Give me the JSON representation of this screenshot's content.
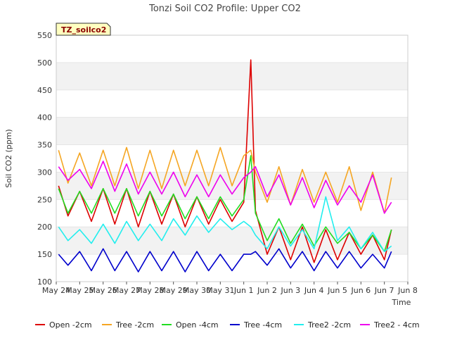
{
  "chart_data": {
    "type": "line",
    "title": "Tonzi Soil CO2 Profile: Upper CO2",
    "xlabel": "Time",
    "ylabel": "Soil CO2 (ppm)",
    "badge": "TZ_soilco2",
    "ylim": [
      100,
      550
    ],
    "yticks": [
      100,
      150,
      200,
      250,
      300,
      350,
      400,
      450,
      500,
      550
    ],
    "xlim": [
      0,
      15
    ],
    "xtick_labels": [
      "May 24",
      "May 25",
      "May 26",
      "May 27",
      "May 28",
      "May 29",
      "May 30",
      "May 31",
      "Jun 1",
      "Jun 2",
      "Jun 3",
      "Jun 4",
      "Jun 5",
      "Jun 6",
      "Jun 7",
      "Jun 8"
    ],
    "grid": "horizontal bands",
    "legend_position": "bottom",
    "x_days": [
      0.1,
      0.5,
      1.0,
      1.5,
      2.0,
      2.5,
      3.0,
      3.5,
      4.0,
      4.5,
      5.0,
      5.5,
      6.0,
      6.5,
      7.0,
      7.5,
      8.0,
      8.3,
      8.5,
      9.0,
      9.5,
      10.0,
      10.5,
      11.0,
      11.5,
      12.0,
      12.5,
      13.0,
      13.5,
      14.0,
      14.3
    ],
    "series": [
      {
        "name": "Open -2cm",
        "color": "#dd0000",
        "values": [
          275,
          220,
          265,
          210,
          270,
          205,
          270,
          200,
          265,
          205,
          260,
          200,
          255,
          205,
          250,
          210,
          245,
          505,
          230,
          150,
          200,
          140,
          200,
          135,
          195,
          140,
          190,
          150,
          185,
          140,
          195
        ]
      },
      {
        "name": "Tree -2cm",
        "color": "#f5a623",
        "values": [
          340,
          280,
          335,
          275,
          340,
          275,
          345,
          270,
          340,
          270,
          340,
          275,
          340,
          275,
          345,
          275,
          330,
          340,
          300,
          245,
          310,
          240,
          305,
          245,
          300,
          245,
          310,
          230,
          300,
          225,
          290
        ]
      },
      {
        "name": "Open -4cm",
        "color": "#22dd22",
        "values": [
          270,
          225,
          265,
          225,
          270,
          225,
          270,
          220,
          265,
          220,
          260,
          215,
          255,
          215,
          255,
          220,
          250,
          330,
          225,
          175,
          215,
          170,
          205,
          165,
          200,
          170,
          190,
          160,
          185,
          155,
          195
        ]
      },
      {
        "name": "Tree -4cm",
        "color": "#0000cc",
        "values": [
          150,
          130,
          155,
          120,
          160,
          120,
          155,
          118,
          155,
          120,
          155,
          118,
          155,
          120,
          150,
          120,
          150,
          150,
          155,
          130,
          160,
          125,
          155,
          120,
          155,
          125,
          155,
          125,
          150,
          125,
          155
        ]
      },
      {
        "name": "Tree2 -2cm",
        "color": "#22eeee",
        "values": [
          200,
          175,
          195,
          170,
          205,
          170,
          210,
          175,
          205,
          175,
          215,
          185,
          220,
          190,
          215,
          195,
          210,
          200,
          185,
          160,
          200,
          165,
          195,
          160,
          255,
          175,
          200,
          160,
          190,
          155,
          165
        ]
      },
      {
        "name": "Tree2 - 4cm",
        "color": "#ee00ee",
        "values": [
          310,
          285,
          305,
          270,
          320,
          265,
          315,
          260,
          300,
          260,
          300,
          255,
          295,
          255,
          295,
          260,
          290,
          300,
          310,
          255,
          295,
          240,
          290,
          235,
          285,
          240,
          275,
          245,
          295,
          225,
          245
        ]
      }
    ]
  }
}
